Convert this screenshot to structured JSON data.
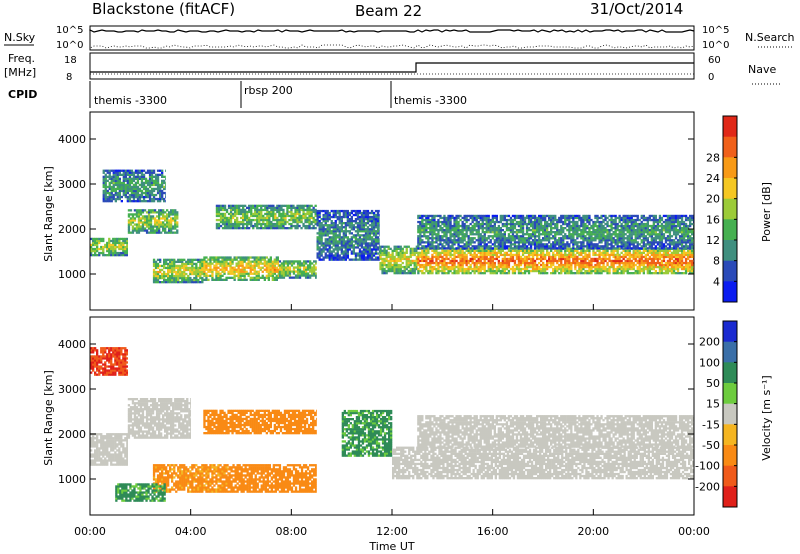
{
  "header": {
    "station": "Blackstone (fitACF)",
    "beam": "Beam 22",
    "date": "31/Oct/2014"
  },
  "strip": {
    "nsky_label": "N.Sky",
    "nsearch_label": "N.Search",
    "left_ticks": [
      "10^5",
      "10^0"
    ],
    "right_ticks": [
      "10^5",
      "10^0"
    ],
    "freq_label_top": "Freq.",
    "freq_label_unit": "[MHz]",
    "freq_ticks": [
      "18",
      "8"
    ],
    "nave_label": "Nave",
    "nave_ticks": [
      "60",
      "0"
    ],
    "cpid_label": "CPID",
    "programs": [
      {
        "name": "themis -3300",
        "start_hour": 0
      },
      {
        "name": "rbsp 200",
        "start_hour": 6
      },
      {
        "name": "themis -3300",
        "start_hour": 12
      }
    ]
  },
  "chart_data": [
    {
      "type": "heatmap",
      "panel": "power",
      "xlabel": "",
      "ylabel": "Slant Range [km]",
      "yticks": [
        "1000",
        "2000",
        "3000",
        "4000"
      ],
      "ylim": [
        200,
        4600
      ],
      "xlim": [
        0,
        24
      ],
      "colorbar": {
        "label": "Power [dB]",
        "ticks": [
          "4",
          "8",
          "12",
          "16",
          "20",
          "24",
          "28"
        ],
        "colors": [
          "#0a1cf0",
          "#2a4ab8",
          "#3f8f7f",
          "#45b050",
          "#9ccb38",
          "#f5c722",
          "#f89a16",
          "#f0601a",
          "#e02818"
        ]
      },
      "bands": [
        {
          "t0": 0.0,
          "t1": 1.5,
          "r0": 1400,
          "r1": 1800,
          "level": 0.55
        },
        {
          "t0": 1.5,
          "t1": 3.5,
          "r0": 1900,
          "r1": 2400,
          "level": 0.55
        },
        {
          "t0": 0.5,
          "t1": 3.0,
          "r0": 2600,
          "r1": 3300,
          "level": 0.35
        },
        {
          "t0": 2.5,
          "t1": 4.5,
          "r0": 800,
          "r1": 1300,
          "level": 0.6
        },
        {
          "t0": 4.5,
          "t1": 7.5,
          "r0": 850,
          "r1": 1350,
          "level": 0.7
        },
        {
          "t0": 7.5,
          "t1": 9.0,
          "r0": 900,
          "r1": 1300,
          "level": 0.55
        },
        {
          "t0": 5.0,
          "t1": 9.0,
          "r0": 2000,
          "r1": 2500,
          "level": 0.5
        },
        {
          "t0": 9.0,
          "t1": 11.5,
          "r0": 1300,
          "r1": 2400,
          "level": 0.3
        },
        {
          "t0": 11.5,
          "t1": 13.0,
          "r0": 1000,
          "r1": 1600,
          "level": 0.6
        },
        {
          "t0": 13.0,
          "t1": 24.0,
          "r0": 1000,
          "r1": 1550,
          "level": 0.85
        },
        {
          "t0": 13.0,
          "t1": 24.0,
          "r0": 1550,
          "r1": 2300,
          "level": 0.35
        }
      ]
    },
    {
      "type": "heatmap",
      "panel": "velocity",
      "xlabel": "Time UT",
      "ylabel": "Slant Range [km]",
      "yticks": [
        "1000",
        "2000",
        "3000",
        "4000"
      ],
      "ylim": [
        200,
        4600
      ],
      "xlim": [
        0,
        24
      ],
      "xticks": [
        "00:00",
        "04:00",
        "08:00",
        "12:00",
        "16:00",
        "20:00",
        "00:00"
      ],
      "colorbar": {
        "label": "Velocity [m s⁻¹]",
        "ticks": [
          "200",
          "100",
          "50",
          "15",
          "-15",
          "-50",
          "-100",
          "-200"
        ],
        "colors": [
          "#1a2ad0",
          "#3a6fa8",
          "#2e8b57",
          "#6dcc3e",
          "#c8c8c0",
          "#f5b521",
          "#f98a14",
          "#f05a1a",
          "#e0201a"
        ]
      },
      "bands": [
        {
          "t0": 0.0,
          "t1": 1.5,
          "r0": 1300,
          "r1": 2000,
          "v": 0
        },
        {
          "t0": 1.5,
          "t1": 4.0,
          "r0": 1900,
          "r1": 2800,
          "v": 0
        },
        {
          "t0": 0.0,
          "t1": 1.5,
          "r0": 3300,
          "r1": 3900,
          "v": -150
        },
        {
          "t0": 2.5,
          "t1": 5.5,
          "r0": 700,
          "r1": 1300,
          "v": -40
        },
        {
          "t0": 5.5,
          "t1": 9.0,
          "r0": 700,
          "r1": 1300,
          "v": -50
        },
        {
          "t0": 4.5,
          "t1": 9.0,
          "r0": 2000,
          "r1": 2500,
          "v": -60
        },
        {
          "t0": 1.0,
          "t1": 3.0,
          "r0": 500,
          "r1": 900,
          "v": 40
        },
        {
          "t0": 10.0,
          "t1": 12.0,
          "r0": 1500,
          "r1": 2500,
          "v": 40
        },
        {
          "t0": 12.0,
          "t1": 24.0,
          "r0": 1000,
          "r1": 1700,
          "v": 0
        },
        {
          "t0": 13.0,
          "t1": 24.0,
          "r0": 1700,
          "r1": 2400,
          "v": 0
        }
      ]
    }
  ]
}
